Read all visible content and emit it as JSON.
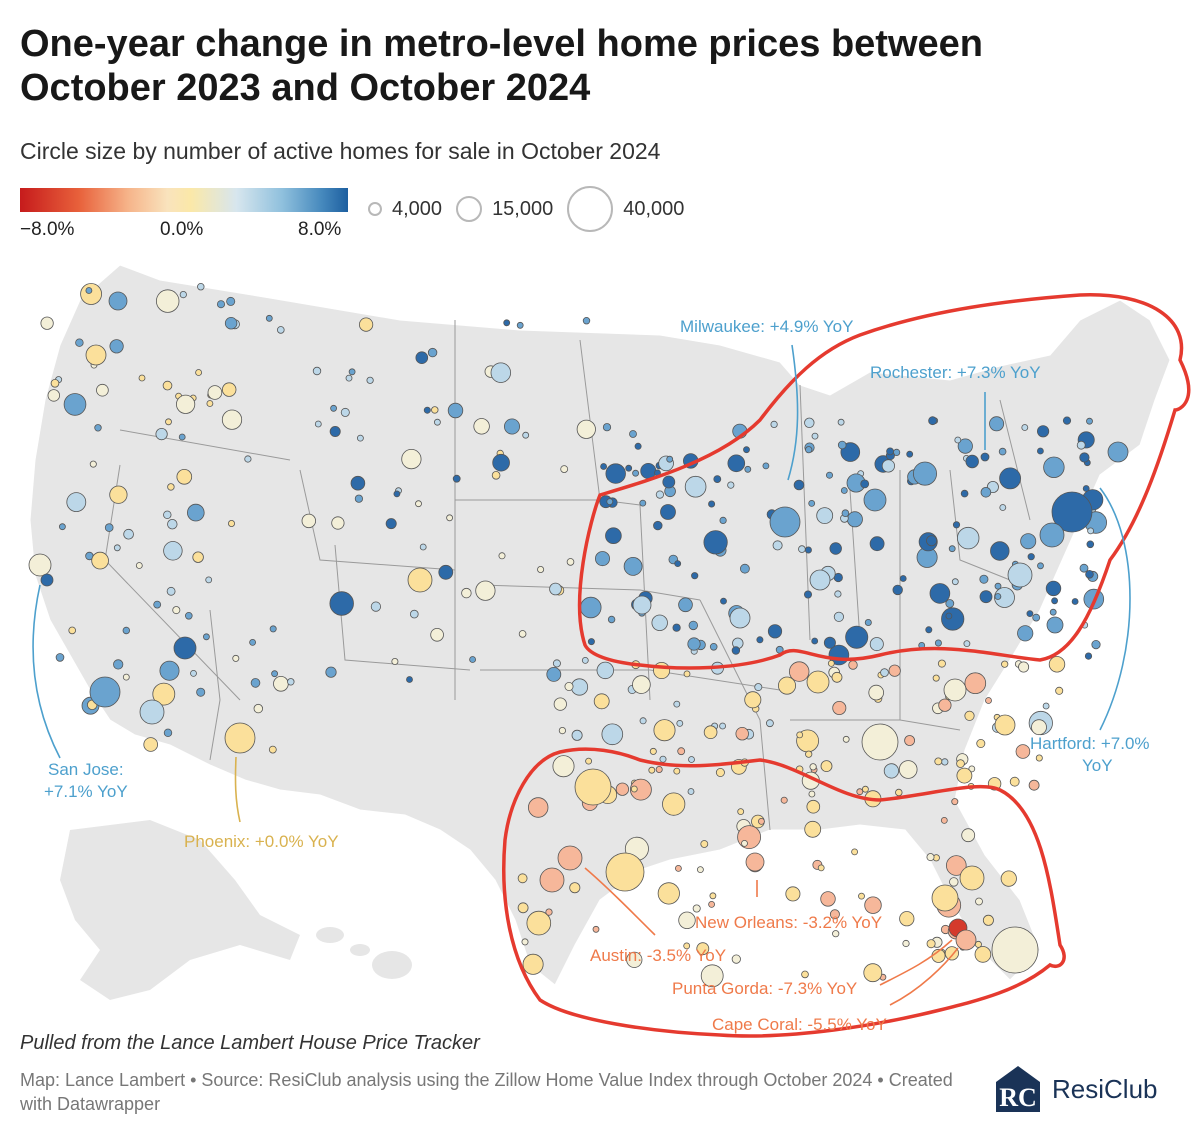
{
  "title": "One-year change in metro-level home prices between October 2023 and October 2024",
  "subtitle": "Circle size by number of active homes for sale in October 2024",
  "color_legend": {
    "min": "−8.0%",
    "mid": "0.0%",
    "max": "8.0%"
  },
  "size_legend": [
    "4,000",
    "15,000",
    "40,000"
  ],
  "annotations": {
    "milwaukee": "Milwaukee: +4.9% YoY",
    "rochester": "Rochester: +7.3% YoY",
    "hartford_1": "Hartford: +7.0%",
    "hartford_2": "YoY",
    "san_jose_1": "San Jose:",
    "san_jose_2": "+7.1% YoY",
    "phoenix": "Phoenix: +0.0% YoY",
    "new_orleans": "New Orleans: -3.2% YoY",
    "austin": "Austin: -3.5% YoY",
    "punta_gorda": "Punta Gorda: -7.3% YoY",
    "cape_coral": "Cape Coral: -5.5% YoY"
  },
  "colors": {
    "strong_blue": "#2d6aa8",
    "mid_blue": "#6aa3cf",
    "light_blue": "#bcd7e8",
    "pale": "#f3efd8",
    "yellow": "#fbe09b",
    "peach": "#f6b79a",
    "red": "#d43a2c",
    "annotation_blue": "#4da0cd",
    "annotation_orange": "#ef7a4a",
    "annotation_yellow": "#d9b24f",
    "highlight_red": "#e53a2f"
  },
  "note": "Pulled from the Lance Lambert House Price Tracker",
  "credit": "Map: Lance Lambert • Source: ResiClub analysis using the Zillow Home Value Index through October 2024 • Created with Datawrapper",
  "logo": {
    "mark": "RC",
    "text": "ResiClub"
  }
}
